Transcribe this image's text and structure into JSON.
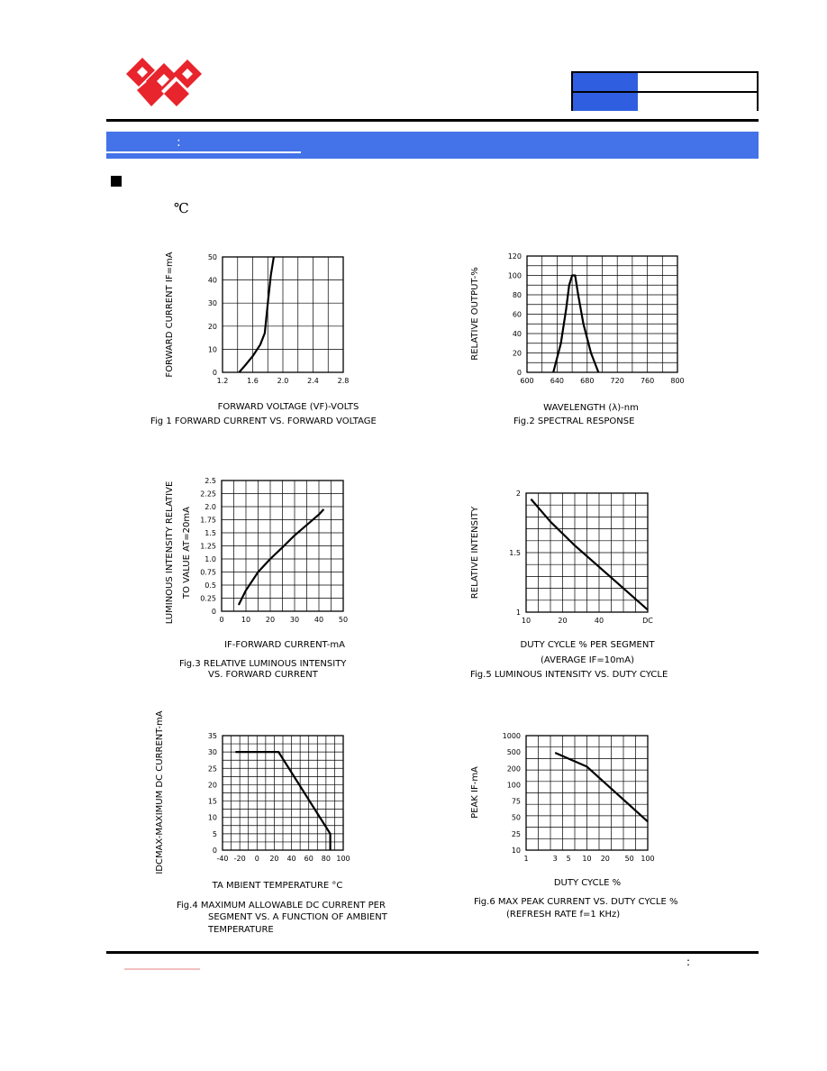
{
  "header": {
    "info_table": {
      "rows": 2
    },
    "colors": {
      "brand_red": "#e8242c",
      "section_blue": "#4472e8",
      "table_blue": "#2f5fe0"
    }
  },
  "section": {
    "colon": ":",
    "temperature_symbol": "℃"
  },
  "footer": {
    "colon": ":"
  },
  "chart_data": [
    {
      "id": "fig1",
      "type": "line",
      "xlabel": "FORWARD VOLTAGE (VF)-VOLTS",
      "ylabel": "FORWARD CURRENT IF=mA",
      "caption": [
        "Fig 1  FORWARD CURRENT VS. FORWARD VOLTAGE"
      ],
      "x_ticks": [
        "1.2",
        "1.6",
        "2.0",
        "2.4",
        "2.8"
      ],
      "y_ticks": [
        "0",
        "10",
        "20",
        "30",
        "40",
        "50"
      ],
      "xlim": [
        1.2,
        2.8
      ],
      "ylim": [
        0,
        50
      ],
      "grid": true,
      "series": [
        {
          "x": [
            1.42,
            1.5,
            1.6,
            1.7,
            1.76,
            1.8,
            1.84,
            1.88
          ],
          "y": [
            0,
            3,
            7,
            12,
            17,
            30,
            42,
            50
          ]
        }
      ]
    },
    {
      "id": "fig2",
      "type": "line",
      "xlabel": "WAVELENGTH (λ)-nm",
      "ylabel": "RELATIVE OUTPUT-%",
      "caption": [
        "Fig.2  SPECTRAL RESPONSE"
      ],
      "x_ticks": [
        "600",
        "640",
        "680",
        "720",
        "760",
        "800"
      ],
      "y_ticks": [
        "0",
        "20",
        "40",
        "60",
        "80",
        "100",
        "120"
      ],
      "xlim": [
        600,
        800
      ],
      "ylim": [
        0,
        120
      ],
      "grid": true,
      "series": [
        {
          "x": [
            635,
            645,
            652,
            656,
            660,
            664,
            668,
            675,
            685,
            695
          ],
          "y": [
            0,
            30,
            65,
            90,
            100,
            100,
            80,
            50,
            20,
            0
          ]
        }
      ]
    },
    {
      "id": "fig3",
      "type": "line",
      "xlabel": "IF-FORWARD CURRENT-mA",
      "ylabel": "LUMINOUS INTENSITY RELATIVE TO VALUE AT=20mA",
      "caption": [
        "Fig.3  RELATIVE LUMINOUS INTENSITY",
        "VS. FORWARD CURRENT"
      ],
      "x_ticks": [
        "0",
        "10",
        "20",
        "30",
        "40",
        "50"
      ],
      "y_ticks": [
        "0",
        "0.25",
        "0.5",
        "0.75",
        "1.0",
        "1.25",
        "1.5",
        "1.75",
        "2.0",
        "2.25",
        "2.5"
      ],
      "xlim": [
        0,
        50
      ],
      "ylim": [
        0,
        2.5
      ],
      "grid": true,
      "series": [
        {
          "x": [
            7,
            10,
            15,
            20,
            25,
            30,
            35,
            40,
            42
          ],
          "y": [
            0.12,
            0.4,
            0.75,
            1.0,
            1.22,
            1.45,
            1.65,
            1.85,
            1.95
          ]
        }
      ]
    },
    {
      "id": "fig5",
      "type": "line",
      "xlabel": "DUTY CYCLE % PER SEGMENT",
      "xlabel2": "(AVERAGE  IF=10mA)",
      "ylabel": "RELATIVE INTENSITY",
      "caption": [
        "Fig.5  LUMINOUS INTENSITY VS. DUTY CYCLE"
      ],
      "x_ticks": [
        "10",
        "20",
        "40",
        "DC"
      ],
      "y_ticks": [
        "1",
        "1.5",
        "2"
      ],
      "ylim": [
        1,
        2
      ],
      "grid": true,
      "series": [
        {
          "x_frac": [
            0.04,
            0.2,
            0.4,
            0.6,
            0.8,
            1.0
          ],
          "y": [
            1.95,
            1.76,
            1.56,
            1.38,
            1.2,
            1.02
          ]
        }
      ]
    },
    {
      "id": "fig4",
      "type": "line",
      "xlabel": "TA MBIENT TEMPERATURE °C",
      "ylabel": "IDCMAX-MAXIMUM DC CURRENT-mA",
      "caption": [
        "Fig.4  MAXIMUM ALLOWABLE DC CURRENT PER",
        "SEGMENT VS. A FUNCTION OF AMBIENT",
        "TEMPERATURE"
      ],
      "x_ticks": [
        "-40",
        "-20",
        "0",
        "20",
        "40",
        "60",
        "80",
        "100"
      ],
      "y_ticks": [
        "0",
        "5",
        "10",
        "15",
        "20",
        "25",
        "30",
        "35"
      ],
      "xlim": [
        -40,
        100
      ],
      "ylim": [
        0,
        35
      ],
      "grid": true,
      "series": [
        {
          "x": [
            -25,
            25,
            85,
            85
          ],
          "y": [
            30,
            30,
            5,
            0
          ]
        }
      ]
    },
    {
      "id": "fig6",
      "type": "line",
      "xlabel": "DUTY CYCLE %",
      "ylabel": "PEAK IF-mA",
      "caption": [
        "Fig.6  MAX PEAK CURRENT VS. DUTY CYCLE %",
        "(REFRESH RATE f=1 KHz)"
      ],
      "x_ticks": [
        "1",
        "3",
        "5",
        "10",
        "20",
        "50",
        "100"
      ],
      "y_ticks": [
        "10",
        "25",
        "50",
        "75",
        "100",
        "200",
        "500",
        "1000"
      ],
      "xscale": "log",
      "yscale": "log",
      "xlim": [
        1,
        100
      ],
      "ylim": [
        10,
        1000
      ],
      "grid": true,
      "series": [
        {
          "x": [
            3,
            10,
            100
          ],
          "y": [
            480,
            220,
            42
          ]
        }
      ]
    }
  ]
}
